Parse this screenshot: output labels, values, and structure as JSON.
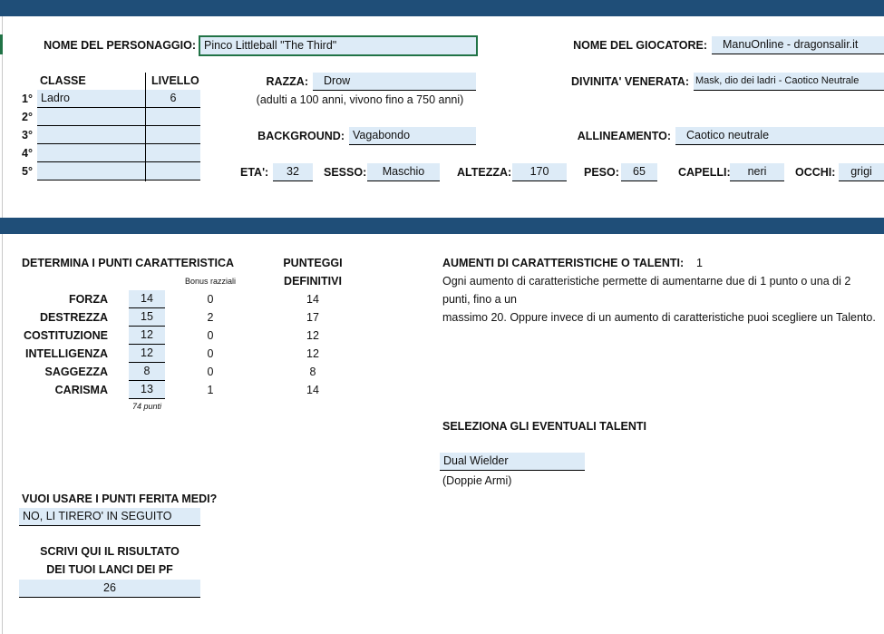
{
  "header": {
    "character_name_label": "NOME DEL PERSONAGGIO:",
    "character_name": "Pinco Littleball \"The Third\"",
    "player_name_label": "NOME DEL GIOCATORE:",
    "player_name": "ManuOnline - dragonsalir.it",
    "class_header": "CLASSE",
    "level_header": "LIVELLO",
    "classes": [
      {
        "n": "1°",
        "cls": "Ladro",
        "lvl": "6"
      },
      {
        "n": "2°",
        "cls": "",
        "lvl": ""
      },
      {
        "n": "3°",
        "cls": "",
        "lvl": ""
      },
      {
        "n": "4°",
        "cls": "",
        "lvl": ""
      },
      {
        "n": "5°",
        "cls": "",
        "lvl": ""
      }
    ],
    "race_label": "RAZZA:",
    "race": "Drow",
    "race_note": "(adulti a 100 anni, vivono fino a 750 anni)",
    "deity_label": "DIVINITA' VENERATA:",
    "deity": "Mask, dio dei ladri - Caotico Neutrale",
    "background_label": "BACKGROUND:",
    "background": "Vagabondo",
    "alignment_label": "ALLINEAMENTO:",
    "alignment": "Caotico neutrale",
    "age_label": "ETA':",
    "age": "32",
    "sex_label": "SESSO:",
    "sex": "Maschio",
    "height_label": "ALTEZZA:",
    "height": "170",
    "weight_label": "PESO:",
    "weight": "65",
    "hair_label": "CAPELLI:",
    "hair": "neri",
    "eyes_label": "OCCHI:",
    "eyes": "grigi"
  },
  "abilities": {
    "title": "DETERMINA I PUNTI CARATTERISTICA",
    "bonus_header": "Bonus razziali",
    "final_header_1": "PUNTEGGI",
    "final_header_2": "DEFINITIVI",
    "points_total": "74 punti",
    "rows": [
      {
        "name": "FORZA",
        "base": "14",
        "bonus": "0",
        "final": "14"
      },
      {
        "name": "DESTREZZA",
        "base": "15",
        "bonus": "2",
        "final": "17"
      },
      {
        "name": "COSTITUZIONE",
        "base": "12",
        "bonus": "0",
        "final": "12"
      },
      {
        "name": "INTELLIGENZA",
        "base": "12",
        "bonus": "0",
        "final": "12"
      },
      {
        "name": "SAGGEZZA",
        "base": "8",
        "bonus": "0",
        "final": "8"
      },
      {
        "name": "CARISMA",
        "base": "13",
        "bonus": "1",
        "final": "14"
      }
    ]
  },
  "improvements": {
    "label": "AUMENTI DI CARATTERISTICHE O TALENTI:",
    "count": "1",
    "line1": "Ogni aumento di caratteristiche permette di aumentarne due di 1 punto o una di 2 punti, fino a un",
    "line2": "massimo 20. Oppure invece di un aumento di caratteristiche puoi scegliere un Talento.",
    "feats_label": "SELEZIONA GLI EVENTUALI TALENTI",
    "feat": "Dual Wielder",
    "feat_note": "(Doppie Armi)"
  },
  "hp": {
    "avg_question": "VUOI USARE I PUNTI FERITA MEDI?",
    "avg_answer": "NO, LI TIRERO' IN SEGUITO",
    "roll_label_1": "SCRIVI QUI IL RISULTATO",
    "roll_label_2": "DEI TUOI LANCI DEI PF",
    "roll_value": "26"
  }
}
